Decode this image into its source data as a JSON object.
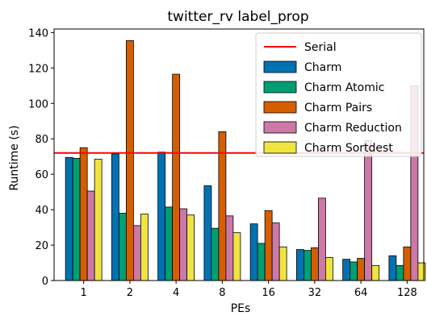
{
  "chart_data": {
    "type": "bar",
    "title": "twitter_rv label_prop",
    "xlabel": "PEs",
    "ylabel": "Runtime (s)",
    "categories": [
      "1",
      "2",
      "4",
      "8",
      "16",
      "32",
      "64",
      "128"
    ],
    "ylim": [
      0,
      142
    ],
    "yticks": [
      0,
      20,
      40,
      60,
      80,
      100,
      120,
      140
    ],
    "grid": false,
    "legend_position": "top-right",
    "reference_line": {
      "name": "Serial",
      "value": 72,
      "color": "#ff0000"
    },
    "series": [
      {
        "name": "Charm",
        "color": "#0072b2",
        "values": [
          69.5,
          71.5,
          72.5,
          53.5,
          32,
          17.5,
          12,
          14
        ]
      },
      {
        "name": "Charm Atomic",
        "color": "#009e73",
        "values": [
          69,
          38,
          41.5,
          29.5,
          21,
          17,
          10.5,
          8.5
        ]
      },
      {
        "name": "Charm Pairs",
        "color": "#d55e00",
        "values": [
          75,
          135.5,
          116.5,
          84,
          39.5,
          18.5,
          12.5,
          19
        ]
      },
      {
        "name": "Charm Reduction",
        "color": "#cc79a7",
        "values": [
          50.5,
          31,
          40.5,
          36.5,
          32.5,
          46.5,
          79,
          110
        ]
      },
      {
        "name": "Charm Sortdest",
        "color": "#f0e442",
        "values": [
          68.5,
          37.5,
          37,
          27,
          19,
          13,
          8.5,
          10
        ]
      }
    ]
  }
}
